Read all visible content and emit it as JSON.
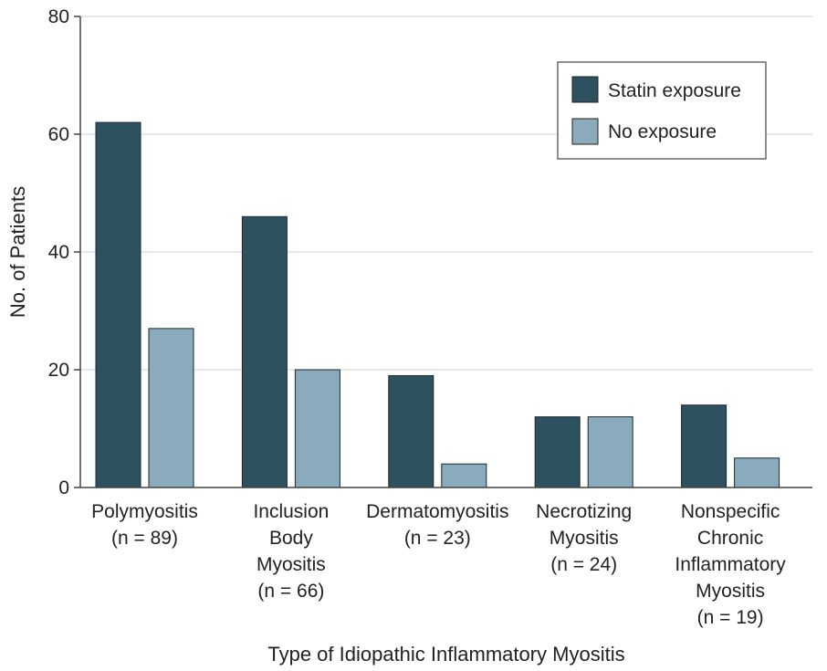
{
  "chart_data": {
    "type": "bar",
    "title": "",
    "xlabel": "Type of Idiopathic Inflammatory Myositis",
    "ylabel": "No. of Patients",
    "ylim": [
      0,
      80
    ],
    "yticks": [
      0,
      20,
      40,
      60,
      80
    ],
    "grid": true,
    "legend_position": "top-right",
    "categories": [
      [
        "Polymyositis",
        "(n = 89)"
      ],
      [
        "Inclusion",
        "Body",
        "Myositis",
        "(n = 66)"
      ],
      [
        "Dermatomyositis",
        "(n = 23)"
      ],
      [
        "Necrotizing",
        "Myositis",
        "(n = 24)"
      ],
      [
        "Nonspecific",
        "Chronic",
        "Inflammatory",
        "Myositis",
        "(n = 19)"
      ]
    ],
    "series": [
      {
        "name": "Statin exposure",
        "color": "#2e5160",
        "values": [
          62,
          46,
          19,
          12,
          14
        ]
      },
      {
        "name": "No exposure",
        "color": "#8aabbb",
        "values": [
          27,
          20,
          4,
          12,
          5
        ]
      }
    ]
  }
}
